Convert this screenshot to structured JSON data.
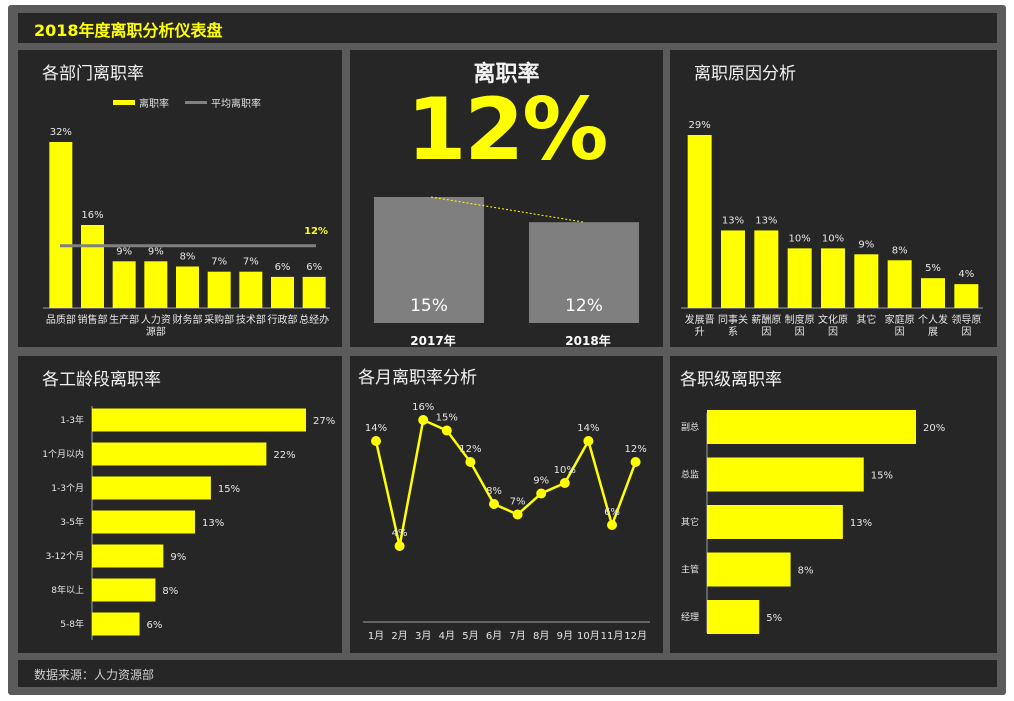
{
  "dashboard": {
    "title": "2018年度离职分析仪表盘",
    "footer": "数据来源：人力资源部",
    "colors": {
      "accent": "#ffff00",
      "panel_bg": "#262626",
      "frame": "#5b5b5b",
      "gray_bar": "#7f7f7f",
      "avg_line": "#808080"
    }
  },
  "panels": {
    "dept_title": "各部门离职率",
    "kpi_title": "离职率",
    "kpi_value": "12%",
    "reason_title": "离职原因分析",
    "tenure_title": "各工龄段离职率",
    "month_title": "各月离职率分析",
    "level_title": "各职级离职率"
  },
  "chart_data": [
    {
      "id": "dept",
      "type": "bar",
      "title": "各部门离职率",
      "categories": [
        "品质部",
        "销售部",
        "生产部",
        "人力资源部",
        "财务部",
        "采购部",
        "技术部",
        "行政部",
        "总经办"
      ],
      "category_labels": [
        [
          "品质部"
        ],
        [
          "销售部"
        ],
        [
          "生产部"
        ],
        [
          "人力资",
          "源部"
        ],
        [
          "财务部"
        ],
        [
          "采购部"
        ],
        [
          "技术部"
        ],
        [
          "行政部"
        ],
        [
          "总经办"
        ]
      ],
      "series": [
        {
          "name": "离职率",
          "values": [
            32,
            16,
            9,
            9,
            8,
            7,
            7,
            6,
            6
          ]
        },
        {
          "name": "平均离职率",
          "values": [
            12,
            12,
            12,
            12,
            12,
            12,
            12,
            12,
            12
          ]
        }
      ],
      "value_labels": [
        "32%",
        "16%",
        "9%",
        "9%",
        "8%",
        "7%",
        "7%",
        "6%",
        "6%"
      ],
      "avg_label": "12%",
      "ylim": [
        0,
        32
      ],
      "legend": "top"
    },
    {
      "id": "yoy",
      "type": "bar",
      "categories": [
        "2017年",
        "2018年"
      ],
      "values": [
        15,
        12
      ],
      "value_labels": [
        "15%",
        "12%"
      ],
      "ylim": [
        0,
        15
      ]
    },
    {
      "id": "reason",
      "type": "bar",
      "title": "离职原因分析",
      "categories": [
        "发展晋升",
        "同事关系",
        "薪酬原因",
        "制度原因",
        "文化原因",
        "其它",
        "家庭原因",
        "个人发展",
        "领导原因"
      ],
      "category_labels": [
        [
          "发展晋",
          "升"
        ],
        [
          "同事关",
          "系"
        ],
        [
          "薪酬原",
          "因"
        ],
        [
          "制度原",
          "因"
        ],
        [
          "文化原",
          "因"
        ],
        [
          "其它"
        ],
        [
          "家庭原",
          "因"
        ],
        [
          "个人发",
          "展"
        ],
        [
          "领导原",
          "因"
        ]
      ],
      "values": [
        29,
        13,
        13,
        10,
        10,
        9,
        8,
        5,
        4
      ],
      "value_labels": [
        "29%",
        "13%",
        "13%",
        "10%",
        "10%",
        "9%",
        "8%",
        "5%",
        "4%"
      ],
      "ylim": [
        0,
        29
      ]
    },
    {
      "id": "tenure",
      "type": "bar",
      "orientation": "horizontal",
      "title": "各工龄段离职率",
      "categories": [
        "1-3年",
        "1个月以内",
        "1-3个月",
        "3-5年",
        "3-12个月",
        "8年以上",
        "5-8年"
      ],
      "values": [
        27,
        22,
        15,
        13,
        9,
        8,
        6
      ],
      "value_labels": [
        "27%",
        "22%",
        "15%",
        "13%",
        "9%",
        "8%",
        "6%"
      ],
      "xlim": [
        0,
        27
      ]
    },
    {
      "id": "month",
      "type": "line",
      "title": "各月离职率分析",
      "categories": [
        "1月",
        "2月",
        "3月",
        "4月",
        "5月",
        "6月",
        "7月",
        "8月",
        "9月",
        "10月",
        "11月",
        "12月"
      ],
      "values": [
        14,
        4,
        16,
        15,
        12,
        8,
        7,
        9,
        10,
        14,
        6,
        12
      ],
      "value_labels": [
        "14%",
        "4%",
        "16%",
        "15%",
        "12%",
        "8%",
        "7%",
        "9%",
        "10%",
        "14%",
        "6%",
        "12%"
      ]
    },
    {
      "id": "level",
      "type": "bar",
      "orientation": "horizontal",
      "title": "各职级离职率",
      "categories": [
        "副总",
        "总监",
        "其它",
        "主管",
        "经理"
      ],
      "values": [
        20,
        15,
        13,
        8,
        5
      ],
      "value_labels": [
        "20%",
        "15%",
        "13%",
        "8%",
        "5%"
      ],
      "xlim": [
        0,
        20
      ]
    }
  ]
}
